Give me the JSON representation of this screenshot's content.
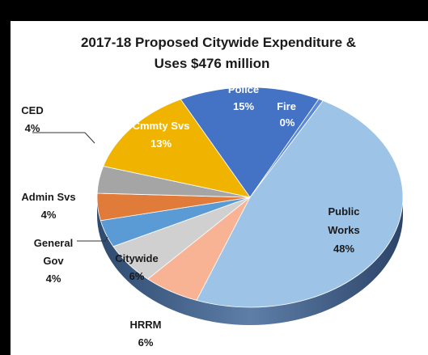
{
  "chart_data": {
    "type": "pie",
    "title_lines": [
      "2017-18 Proposed Citywide Expenditure &",
      "Uses $476 million"
    ],
    "slices": [
      {
        "name": "Police",
        "value": 15,
        "label": "15%",
        "color": "#4472c4",
        "label_color": "#ffffff"
      },
      {
        "name": "Fire",
        "value": 0.5,
        "label": "0%",
        "color": "#5b8bd6",
        "label_color": "#ffffff"
      },
      {
        "name": "Public Works",
        "value": 48,
        "label": "48%",
        "color": "#9dc3e6",
        "label_color": "#1a1a1a"
      },
      {
        "name": "HRRM",
        "value": 6,
        "label": "6%",
        "color": "#f8b294",
        "label_color": "#1a1a1a"
      },
      {
        "name": "Citywide",
        "value": 6,
        "label": "6%",
        "color": "#d0d0d0",
        "label_color": "#1a1a1a"
      },
      {
        "name": "General Gov",
        "value": 4,
        "label": "4%",
        "color": "#5b9bd5",
        "label_color": "#1a1a1a"
      },
      {
        "name": "Admin Svs",
        "value": 4,
        "label": "4%",
        "color": "#e07b3a",
        "label_color": "#1a1a1a"
      },
      {
        "name": "CED",
        "value": 4,
        "label": "4%",
        "color": "#a5a5a5",
        "label_color": "#1a1a1a"
      },
      {
        "name": "Cmmty Svs",
        "value": 13,
        "label": "13%",
        "color": "#f0b400",
        "label_color": "#ffffff"
      }
    ],
    "label_text": {
      "police": [
        "Police",
        "15%"
      ],
      "fire": [
        "Fire",
        "0%"
      ],
      "public_works": [
        "Public",
        "Works",
        "48%"
      ],
      "hrrm": [
        "HRRM",
        "6%"
      ],
      "citywide": [
        "Citywide",
        "6%"
      ],
      "general_gov": [
        "General",
        "Gov",
        "4%"
      ],
      "admin_svs": [
        "Admin Svs",
        "4%"
      ],
      "ced": [
        "CED",
        "4%"
      ],
      "cmmty_svs": [
        "Cmmty Svs",
        "13%"
      ]
    }
  }
}
